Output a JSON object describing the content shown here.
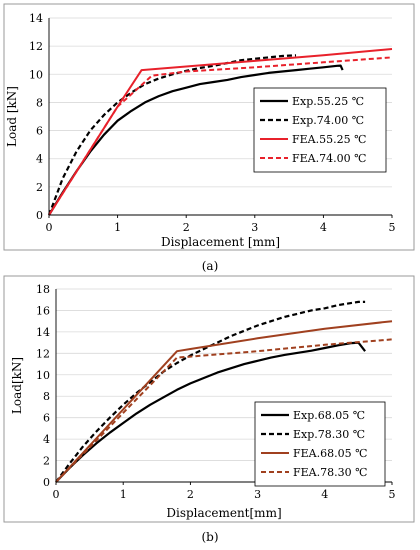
{
  "chart_data": [
    {
      "panel": "a",
      "type": "line",
      "caption": "(a)",
      "xlabel": "Displacement [mm]",
      "ylabel": "Load [kN]",
      "xlim": [
        0,
        5
      ],
      "ylim": [
        0,
        14
      ],
      "xticks": [
        0,
        1,
        2,
        3,
        4,
        5
      ],
      "yticks": [
        0,
        2,
        4,
        6,
        8,
        10,
        12,
        14
      ],
      "grid": "horizontal",
      "legend_position": "right",
      "series": [
        {
          "name": "Exp.55.25 ℃",
          "color": "#000000",
          "dash": "solid",
          "width": 2.2,
          "x": [
            0,
            0.2,
            0.4,
            0.6,
            0.8,
            1.0,
            1.2,
            1.4,
            1.6,
            1.8,
            2.0,
            2.2,
            2.4,
            2.6,
            2.8,
            3.0,
            3.2,
            3.4,
            3.6,
            3.8,
            4.0,
            4.2,
            4.25,
            4.28
          ],
          "y": [
            0,
            1.6,
            3.1,
            4.5,
            5.7,
            6.7,
            7.4,
            8.0,
            8.45,
            8.8,
            9.05,
            9.3,
            9.45,
            9.6,
            9.8,
            9.95,
            10.1,
            10.2,
            10.3,
            10.4,
            10.5,
            10.6,
            10.62,
            10.3
          ]
        },
        {
          "name": "Exp.74.00 ℃",
          "color": "#000000",
          "dash": "dashed",
          "width": 2.2,
          "x": [
            0,
            0.2,
            0.4,
            0.6,
            0.8,
            1.0,
            1.2,
            1.4,
            1.6,
            1.8,
            2.0,
            2.2,
            2.4,
            2.6,
            2.8,
            3.0,
            3.2,
            3.4,
            3.6
          ],
          "y": [
            0,
            2.6,
            4.5,
            6.0,
            7.1,
            8.0,
            8.7,
            9.3,
            9.7,
            10.0,
            10.25,
            10.45,
            10.6,
            10.8,
            11.0,
            11.1,
            11.2,
            11.3,
            11.35
          ]
        },
        {
          "name": "FEA.55.25 ℃",
          "color": "#e8212b",
          "dash": "solid",
          "width": 2.0,
          "x": [
            0,
            1.0,
            1.35,
            2.0,
            3.0,
            4.0,
            5.0
          ],
          "y": [
            0,
            7.7,
            10.3,
            10.55,
            10.95,
            11.35,
            11.8
          ]
        },
        {
          "name": "FEA.74.00 ℃",
          "color": "#e8212b",
          "dash": "dashed",
          "width": 2.0,
          "x": [
            0,
            1.0,
            1.5,
            2.0,
            3.0,
            4.0,
            5.0
          ],
          "y": [
            0,
            7.7,
            9.9,
            10.2,
            10.5,
            10.85,
            11.2
          ]
        }
      ]
    },
    {
      "panel": "b",
      "type": "line",
      "caption": "(b)",
      "xlabel": "Displacement[mm]",
      "ylabel": "Load[kN]",
      "xlim": [
        0,
        5
      ],
      "ylim": [
        0,
        18
      ],
      "xticks": [
        0,
        1,
        2,
        3,
        4,
        5
      ],
      "yticks": [
        0,
        2,
        4,
        6,
        8,
        10,
        12,
        14,
        16,
        18
      ],
      "grid": "horizontal",
      "legend_position": "bottom-right",
      "series": [
        {
          "name": "Exp.68.05 ℃",
          "color": "#000000",
          "dash": "solid",
          "width": 2.2,
          "x": [
            0,
            0.2,
            0.4,
            0.6,
            0.8,
            1.0,
            1.2,
            1.4,
            1.6,
            1.8,
            2.0,
            2.2,
            2.4,
            2.6,
            2.8,
            3.0,
            3.2,
            3.4,
            3.6,
            3.8,
            4.0,
            4.2,
            4.4,
            4.5,
            4.55,
            4.6
          ],
          "y": [
            0,
            1.3,
            2.5,
            3.6,
            4.6,
            5.5,
            6.4,
            7.2,
            7.9,
            8.6,
            9.2,
            9.7,
            10.2,
            10.6,
            11.0,
            11.3,
            11.6,
            11.85,
            12.05,
            12.25,
            12.5,
            12.75,
            12.95,
            13.0,
            12.6,
            12.2
          ]
        },
        {
          "name": "Exp.78.30 ℃",
          "color": "#000000",
          "dash": "dashed",
          "width": 2.2,
          "x": [
            0,
            0.2,
            0.4,
            0.6,
            0.8,
            1.0,
            1.2,
            1.4,
            1.6,
            1.8,
            2.0,
            2.2,
            2.4,
            2.6,
            2.8,
            3.0,
            3.2,
            3.4,
            3.6,
            3.8,
            4.0,
            4.2,
            4.4,
            4.5,
            4.6
          ],
          "y": [
            0,
            1.7,
            3.3,
            4.7,
            6.0,
            7.2,
            8.3,
            9.3,
            10.3,
            11.1,
            11.8,
            12.4,
            13.0,
            13.6,
            14.1,
            14.6,
            15.0,
            15.4,
            15.7,
            16.0,
            16.2,
            16.5,
            16.7,
            16.8,
            16.8
          ]
        },
        {
          "name": "FEA.68.05 ℃",
          "color": "#a0401f",
          "dash": "solid",
          "width": 2.0,
          "x": [
            0,
            1.8,
            2.0,
            3.0,
            4.0,
            5.0
          ],
          "y": [
            0,
            12.2,
            12.4,
            13.4,
            14.3,
            15.0
          ]
        },
        {
          "name": "FEA.78.30 ℃",
          "color": "#a0401f",
          "dash": "dashed",
          "width": 2.0,
          "x": [
            0,
            1.8,
            2.0,
            3.0,
            4.0,
            5.0
          ],
          "y": [
            0,
            11.6,
            11.7,
            12.2,
            12.8,
            13.3
          ]
        }
      ]
    }
  ]
}
